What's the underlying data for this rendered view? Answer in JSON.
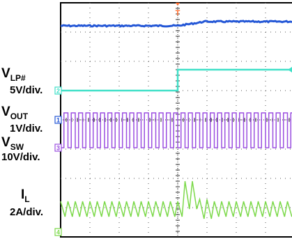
{
  "chart_data": {
    "type": "line",
    "title": "",
    "traces": [
      {
        "id": "vlp",
        "label": "V",
        "sub": "LP#",
        "scale": "5V/div.",
        "marker": "2",
        "color": "#40e0c8"
      },
      {
        "id": "vout",
        "label": "V",
        "sub": "OUT",
        "scale": "1V/div.",
        "marker": "1",
        "color": "#2457d6"
      },
      {
        "id": "vsw",
        "label": "V",
        "sub": "SW",
        "scale": "10V/div.",
        "marker": "3",
        "color": "#9b4fe0"
      },
      {
        "id": "il",
        "label": "I",
        "sub": "L",
        "scale": "2A/div.",
        "marker": "4",
        "color": "#7cd94a"
      }
    ],
    "trigger_marker": "T",
    "grid": true,
    "divisions": {
      "x": 10,
      "y": 8
    }
  },
  "colors": {
    "vout": "#2457d6",
    "vlp": "#40e0c8",
    "vsw": "#9b4fe0",
    "il": "#7cd94a",
    "trigger": "#ff6a2a"
  }
}
